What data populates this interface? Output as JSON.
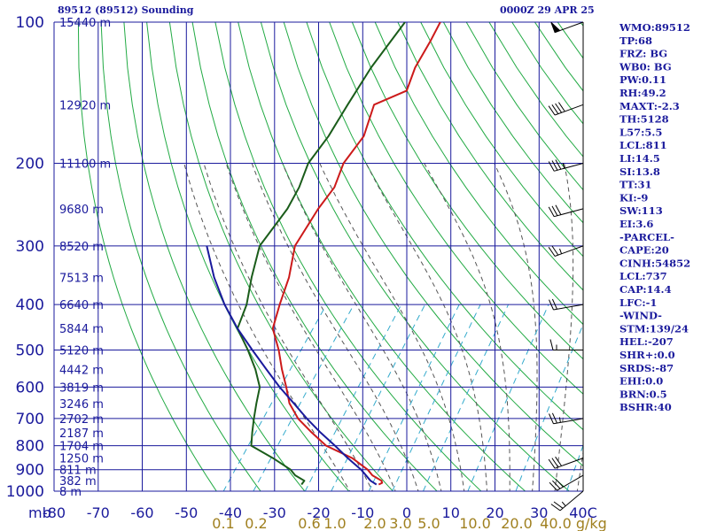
{
  "header": {
    "station_title": "89512 (89512) Sounding",
    "time": "0000Z 29 APR 25"
  },
  "indices": [
    "WMO:89512",
    "TP:68",
    "FRZ: BG",
    "WB0: BG",
    "PW:0.11",
    "RH:49.2",
    "MAXT:-2.3",
    "TH:5128",
    "L57:5.5",
    "LCL:811",
    "LI:14.5",
    "SI:13.8",
    "TT:31",
    "KI:-9",
    "SW:113",
    "EI:3.6",
    "-PARCEL-",
    "CAPE:20",
    "CINH:54852",
    "LCL:737",
    "CAP:14.4",
    "LFC:-1",
    "-WIND-",
    "STM:139/24",
    "HEL:-207",
    "SHR+:0.0",
    "SRDS:-87",
    "EHI:0.0",
    "BRN:0.5",
    "BSHR:40"
  ],
  "colors": {
    "grid": "#1a1a9c",
    "dry_adiabat": "#22aa44",
    "moist_adiabat": "#555555",
    "mixing_ratio": "#33aacc",
    "temperature": "#cc1a1a",
    "dewpoint": "#1a5c1a",
    "parcel": "#1a1a9c",
    "wind_barb": "#000000",
    "mixing_ratio_label": "#a08020"
  },
  "chart_data": {
    "type": "line",
    "xlabel": "",
    "ylabel": "mb",
    "x_unit_label": "C",
    "xlim": [
      -80,
      40
    ],
    "ylim": [
      1000,
      100
    ],
    "y_scale": "log",
    "skew": true,
    "x_ticks": [
      -80,
      -70,
      -60,
      -50,
      -40,
      -30,
      -20,
      -10,
      0,
      10,
      20,
      30,
      40
    ],
    "pressure_levels": [
      100,
      200,
      300,
      400,
      500,
      600,
      700,
      800,
      900,
      1000
    ],
    "height_labels": [
      {
        "p": 100,
        "label": "15440 m"
      },
      {
        "p": 150,
        "label": "12920 m"
      },
      {
        "p": 200,
        "label": "11100 m"
      },
      {
        "p": 250,
        "label": "9680 m"
      },
      {
        "p": 300,
        "label": "8520 m"
      },
      {
        "p": 350,
        "label": "7513 m"
      },
      {
        "p": 400,
        "label": "6640 m"
      },
      {
        "p": 450,
        "label": "5844 m"
      },
      {
        "p": 500,
        "label": "5120 m"
      },
      {
        "p": 550,
        "label": "4442 m"
      },
      {
        "p": 600,
        "label": "3819 m"
      },
      {
        "p": 650,
        "label": "3246 m"
      },
      {
        "p": 700,
        "label": "2702 m"
      },
      {
        "p": 750,
        "label": "2187 m"
      },
      {
        "p": 800,
        "label": "1704 m"
      },
      {
        "p": 850,
        "label": "1250 m"
      },
      {
        "p": 900,
        "label": "811 m"
      },
      {
        "p": 950,
        "label": "382 m"
      },
      {
        "p": 1000,
        "label": "8 m"
      }
    ],
    "mixing_ratio_labels": [
      "0.1",
      "0.2",
      "0.6",
      "1.0",
      "2.0",
      "3.0",
      "5.0",
      "10.0",
      "20.0",
      "40.0 g/kg"
    ],
    "series": [
      {
        "key": "temperature",
        "p": [
          968,
          960,
          950,
          925,
          900,
          850,
          800,
          750,
          700,
          650,
          600,
          550,
          500,
          450,
          400,
          350,
          300,
          250,
          225,
          200,
          175,
          150,
          140,
          125,
          110,
          100
        ],
        "t": [
          -7.5,
          -7,
          -7.5,
          -10.5,
          -12.5,
          -18,
          -26,
          -31.5,
          -37,
          -41.5,
          -45,
          -49,
          -53,
          -58,
          -60.5,
          -63,
          -67,
          -68,
          -68,
          -70,
          -70,
          -73,
          -68,
          -70,
          -71,
          -72
        ]
      },
      {
        "key": "dewpoint",
        "p": [
          968,
          950,
          925,
          900,
          850,
          800,
          750,
          700,
          650,
          600,
          550,
          500,
          450,
          400,
          350,
          300,
          250,
          225,
          200,
          175,
          150,
          125,
          110,
          100
        ],
        "t": [
          -25,
          -25,
          -28,
          -30,
          -36,
          -43,
          -45,
          -47,
          -49,
          -51,
          -55,
          -60,
          -66,
          -68,
          -71.5,
          -75,
          -75,
          -76,
          -78,
          -78,
          -79,
          -80,
          -80,
          -80
        ]
      },
      {
        "key": "parcel",
        "p": [
          968,
          950,
          900,
          850,
          800,
          750,
          700,
          650,
          600,
          550,
          500,
          450,
          400,
          350,
          300
        ],
        "t": [
          -8,
          -10,
          -14,
          -19,
          -24,
          -29.5,
          -35,
          -40.5,
          -46.5,
          -52.5,
          -59,
          -66,
          -73,
          -80,
          -87
        ]
      }
    ],
    "wind_barbs": [
      {
        "p": 100,
        "dir": 250,
        "spd": 50
      },
      {
        "p": 150,
        "dir": 250,
        "spd": 40
      },
      {
        "p": 200,
        "dir": 255,
        "spd": 35
      },
      {
        "p": 250,
        "dir": 255,
        "spd": 30
      },
      {
        "p": 300,
        "dir": 250,
        "spd": 25
      },
      {
        "p": 400,
        "dir": 260,
        "spd": 20
      },
      {
        "p": 500,
        "dir": 270,
        "spd": 15
      },
      {
        "p": 700,
        "dir": 260,
        "spd": 25
      },
      {
        "p": 850,
        "dir": 250,
        "spd": 30
      },
      {
        "p": 925,
        "dir": 240,
        "spd": 30
      },
      {
        "p": 1000,
        "dir": 230,
        "spd": 25
      }
    ]
  }
}
